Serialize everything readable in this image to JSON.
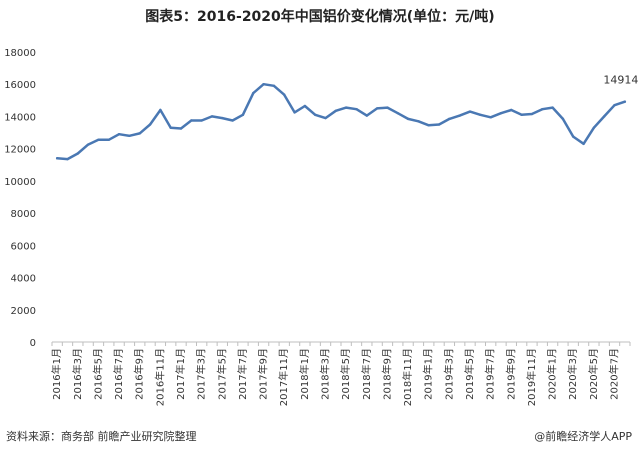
{
  "title": "图表5：2016-2020年中国铝价变化情况(单位：元/吨)",
  "source": "资料来源：商务部 前瞻产业研究院整理",
  "brand": "@前瞻经济学人APP",
  "chart_data": {
    "type": "line",
    "title": "图表5：2016-2020年中国铝价变化情况(单位：元/吨)",
    "xlabel": "",
    "ylabel": "",
    "ylim": [
      0,
      18000
    ],
    "yticks": [
      0,
      2000,
      4000,
      6000,
      8000,
      10000,
      12000,
      14000,
      16000,
      18000
    ],
    "grid": false,
    "legend": "none",
    "line_color": "#4a78b3",
    "tick_labels": [
      "2016年1月",
      "2016年3月",
      "2016年5月",
      "2016年7月",
      "2016年9月",
      "2016年11月",
      "2017年1月",
      "2017年3月",
      "2017年5月",
      "2017年7月",
      "2017年9月",
      "2017年11月",
      "2018年1月",
      "2018年3月",
      "2018年5月",
      "2018年7月",
      "2018年9月",
      "2018年11月",
      "2019年1月",
      "2019年3月",
      "2019年5月",
      "2019年7月",
      "2019年9月",
      "2019年11月",
      "2020年1月",
      "2020年3月",
      "2020年5月",
      "2020年7月"
    ],
    "x": [
      "2016-01",
      "2016-02",
      "2016-03",
      "2016-04",
      "2016-05",
      "2016-06",
      "2016-07",
      "2016-08",
      "2016-09",
      "2016-10",
      "2016-11",
      "2016-12",
      "2017-01",
      "2017-02",
      "2017-03",
      "2017-04",
      "2017-05",
      "2017-06",
      "2017-07",
      "2017-08",
      "2017-09",
      "2017-10",
      "2017-11",
      "2017-12",
      "2018-01",
      "2018-02",
      "2018-03",
      "2018-04",
      "2018-05",
      "2018-06",
      "2018-07",
      "2018-08",
      "2018-09",
      "2018-10",
      "2018-11",
      "2018-12",
      "2019-01",
      "2019-02",
      "2019-03",
      "2019-04",
      "2019-05",
      "2019-06",
      "2019-07",
      "2019-08",
      "2019-09",
      "2019-10",
      "2019-11",
      "2019-12",
      "2020-01",
      "2020-02",
      "2020-03",
      "2020-04",
      "2020-05",
      "2020-06",
      "2020-07",
      "2020-08"
    ],
    "series": [
      {
        "values": [
          11400,
          11350,
          11700,
          12250,
          12550,
          12550,
          12900,
          12800,
          12950,
          13500,
          14400,
          13300,
          13250,
          13750,
          13750,
          14000,
          13900,
          13750,
          14100,
          15450,
          16000,
          15900,
          15350,
          14250,
          14650,
          14100,
          13900,
          14350,
          14550,
          14450,
          14050,
          14500,
          14550,
          14200,
          13850,
          13700,
          13450,
          13500,
          13850,
          14050,
          14300,
          14100,
          13950,
          14200,
          14400,
          14100,
          14150,
          14450,
          14550,
          13850,
          12750,
          12300,
          13300,
          14000,
          14700,
          14914
        ]
      }
    ],
    "annotations": [
      {
        "x": "2020-08",
        "y": 14914,
        "text": "14914"
      }
    ]
  }
}
